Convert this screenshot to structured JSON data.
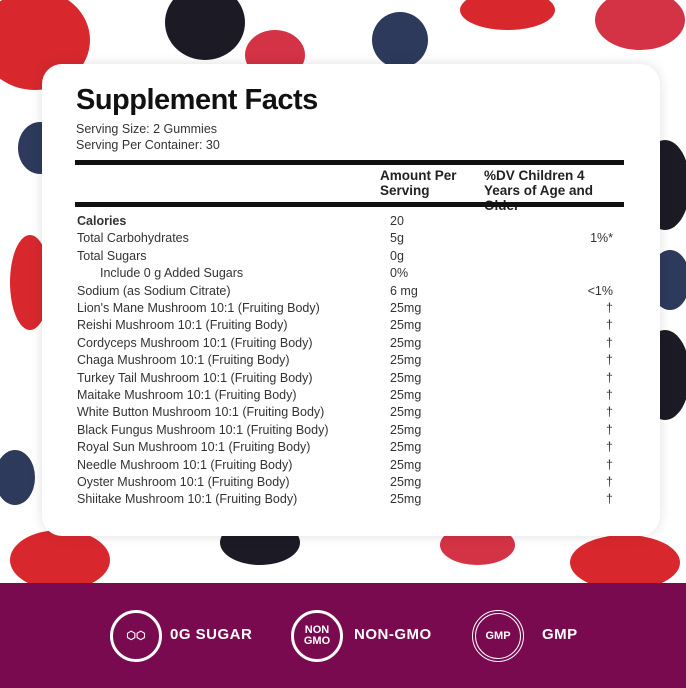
{
  "title": "Supplement Facts",
  "serving_size": "Serving Size: 2 Gummies",
  "servings_per_container": "Serving Per Container: 30",
  "headers": {
    "amount": "Amount Per Serving",
    "dv": "%DV Children 4 Years of Age and Older"
  },
  "rows": [
    {
      "name": "Calories",
      "amount": "20",
      "dv": ""
    },
    {
      "name": "Total Carbohydrates",
      "amount": "5g",
      "dv": "1%*"
    },
    {
      "name": "Total Sugars",
      "amount": "0g",
      "dv": ""
    },
    {
      "name": "Include 0 g Added Sugars",
      "amount": "0%",
      "dv": ""
    },
    {
      "name": "Sodium (as Sodium Citrate)",
      "amount": "6 mg",
      "dv": "<1%"
    },
    {
      "name": "Lion's Mane Mushroom 10:1 (Fruiting Body)",
      "amount": "25mg",
      "dv": "†"
    },
    {
      "name": "Reishi Mushroom 10:1 (Fruiting Body)",
      "amount": "25mg",
      "dv": "†"
    },
    {
      "name": "Cordyceps Mushroom 10:1 (Fruiting Body)",
      "amount": "25mg",
      "dv": "†"
    },
    {
      "name": "Chaga Mushroom 10:1 (Fruiting Body)",
      "amount": "25mg",
      "dv": "†"
    },
    {
      "name": "Turkey Tail Mushroom 10:1  (Fruiting Body)",
      "amount": "25mg",
      "dv": "†"
    },
    {
      "name": "Maitake Mushroom 10:1 (Fruiting Body)",
      "amount": "25mg",
      "dv": "†"
    },
    {
      "name": "White Button Mushroom 10:1 (Fruiting Body)",
      "amount": "25mg",
      "dv": "†"
    },
    {
      "name": "Black Fungus Mushroom 10:1 (Fruiting Body)",
      "amount": "25mg",
      "dv": "†"
    },
    {
      "name": "Royal Sun Mushroom 10:1 (Fruiting Body)",
      "amount": "25mg",
      "dv": "†"
    },
    {
      "name": "Needle Mushroom 10:1 (Fruiting Body)",
      "amount": "25mg",
      "dv": "†"
    },
    {
      "name": "Oyster Mushroom 10:1 (Fruiting Body)",
      "amount": "25mg",
      "dv": "†"
    },
    {
      "name": "Shiitake Mushroom 10:1 (Fruiting Body)",
      "amount": "25mg",
      "dv": "†"
    }
  ],
  "badges": [
    {
      "icon": "no-sugar-cubes-icon",
      "label": "0G SUGAR"
    },
    {
      "icon": "non-gmo-leaf-icon",
      "icon_text": "NON GMO",
      "label": "NON-GMO"
    },
    {
      "icon": "gmp-seal-icon",
      "icon_text": "GMP",
      "seal_text": "GOOD MANUFACTURING PRACTICE",
      "label": "GMP"
    }
  ],
  "colors": {
    "band": "#7a0a4f",
    "strawberry": "#d8282e",
    "blueberry": "#2d3a5c",
    "blackberry": "#1c1a24"
  }
}
